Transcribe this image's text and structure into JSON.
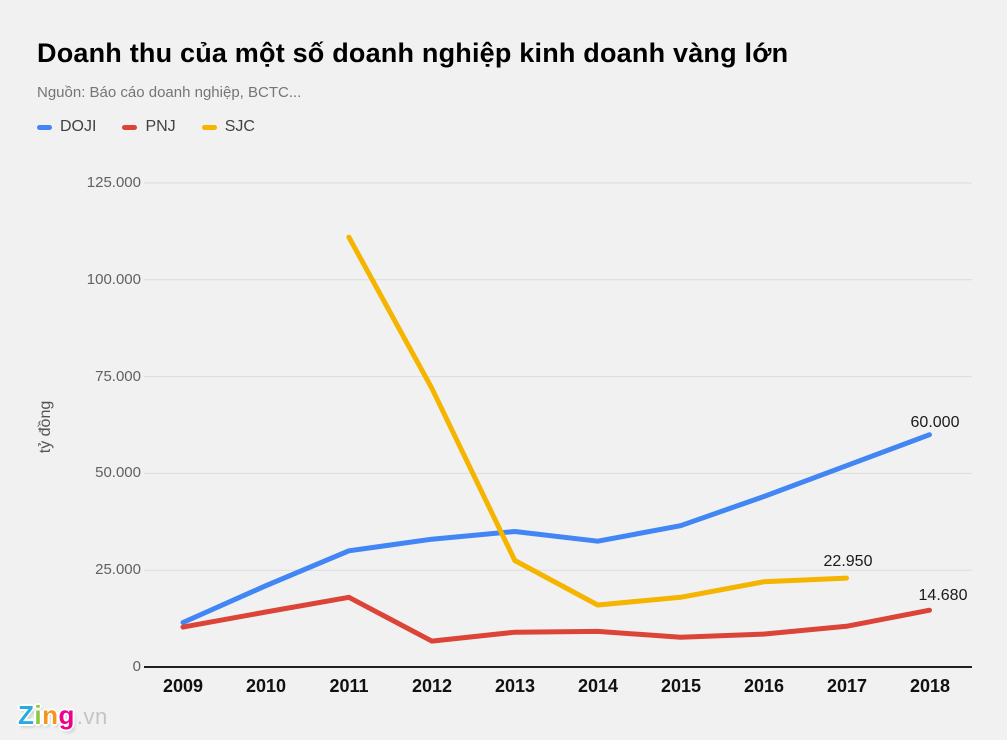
{
  "header": {
    "title": "Doanh thu của một số doanh nghiệp kinh doanh vàng lớn",
    "source": "Nguồn: Báo cáo doanh nghiệp, BCTC..."
  },
  "chart_data": {
    "type": "line",
    "title": "Doanh thu của một số doanh nghiệp kinh doanh vàng lớn",
    "xlabel": "",
    "ylabel": "tỷ đồng",
    "unit": "tỷ đồng",
    "categories": [
      "2009",
      "2010",
      "2011",
      "2012",
      "2013",
      "2014",
      "2015",
      "2016",
      "2017",
      "2018"
    ],
    "series": [
      {
        "name": "DOJI",
        "color": "#4285f4",
        "values": [
          11500,
          21000,
          30000,
          33000,
          35000,
          32500,
          36500,
          44000,
          52000,
          60000
        ]
      },
      {
        "name": "PNJ",
        "color": "#db4437",
        "values": [
          10300,
          14200,
          18000,
          6700,
          9000,
          9200,
          7700,
          8500,
          10500,
          14680
        ]
      },
      {
        "name": "SJC",
        "color": "#f5b400",
        "values": [
          null,
          null,
          111000,
          72000,
          27500,
          16000,
          18000,
          22000,
          22950,
          null
        ]
      }
    ],
    "ylim": [
      0,
      125000
    ],
    "yticks": [
      "0",
      "25.000",
      "50.000",
      "75.000",
      "100.000",
      "125.000"
    ],
    "grid": true,
    "legend_position": "top-left",
    "annotations": [
      {
        "series": "DOJI",
        "category": "2018",
        "text": "60.000"
      },
      {
        "series": "SJC",
        "category": "2017",
        "text": "22.950"
      },
      {
        "series": "PNJ",
        "category": "2018",
        "text": "14.680"
      }
    ]
  },
  "footer": {
    "logo": {
      "z": "Z",
      "i": "i",
      "n": "n",
      "g": "g",
      "suffix": ".vn"
    },
    "logo_colors": {
      "z": "#29abe2",
      "i": "#8dc63f",
      "n": "#f7941e",
      "g": "#ec008c"
    }
  },
  "colors": {
    "background": "#f1f1f2",
    "gridline": "#dcdcdc",
    "axis": "#212121",
    "doji": "#4285f4",
    "pnj": "#db4437",
    "sjc": "#f5b400"
  }
}
